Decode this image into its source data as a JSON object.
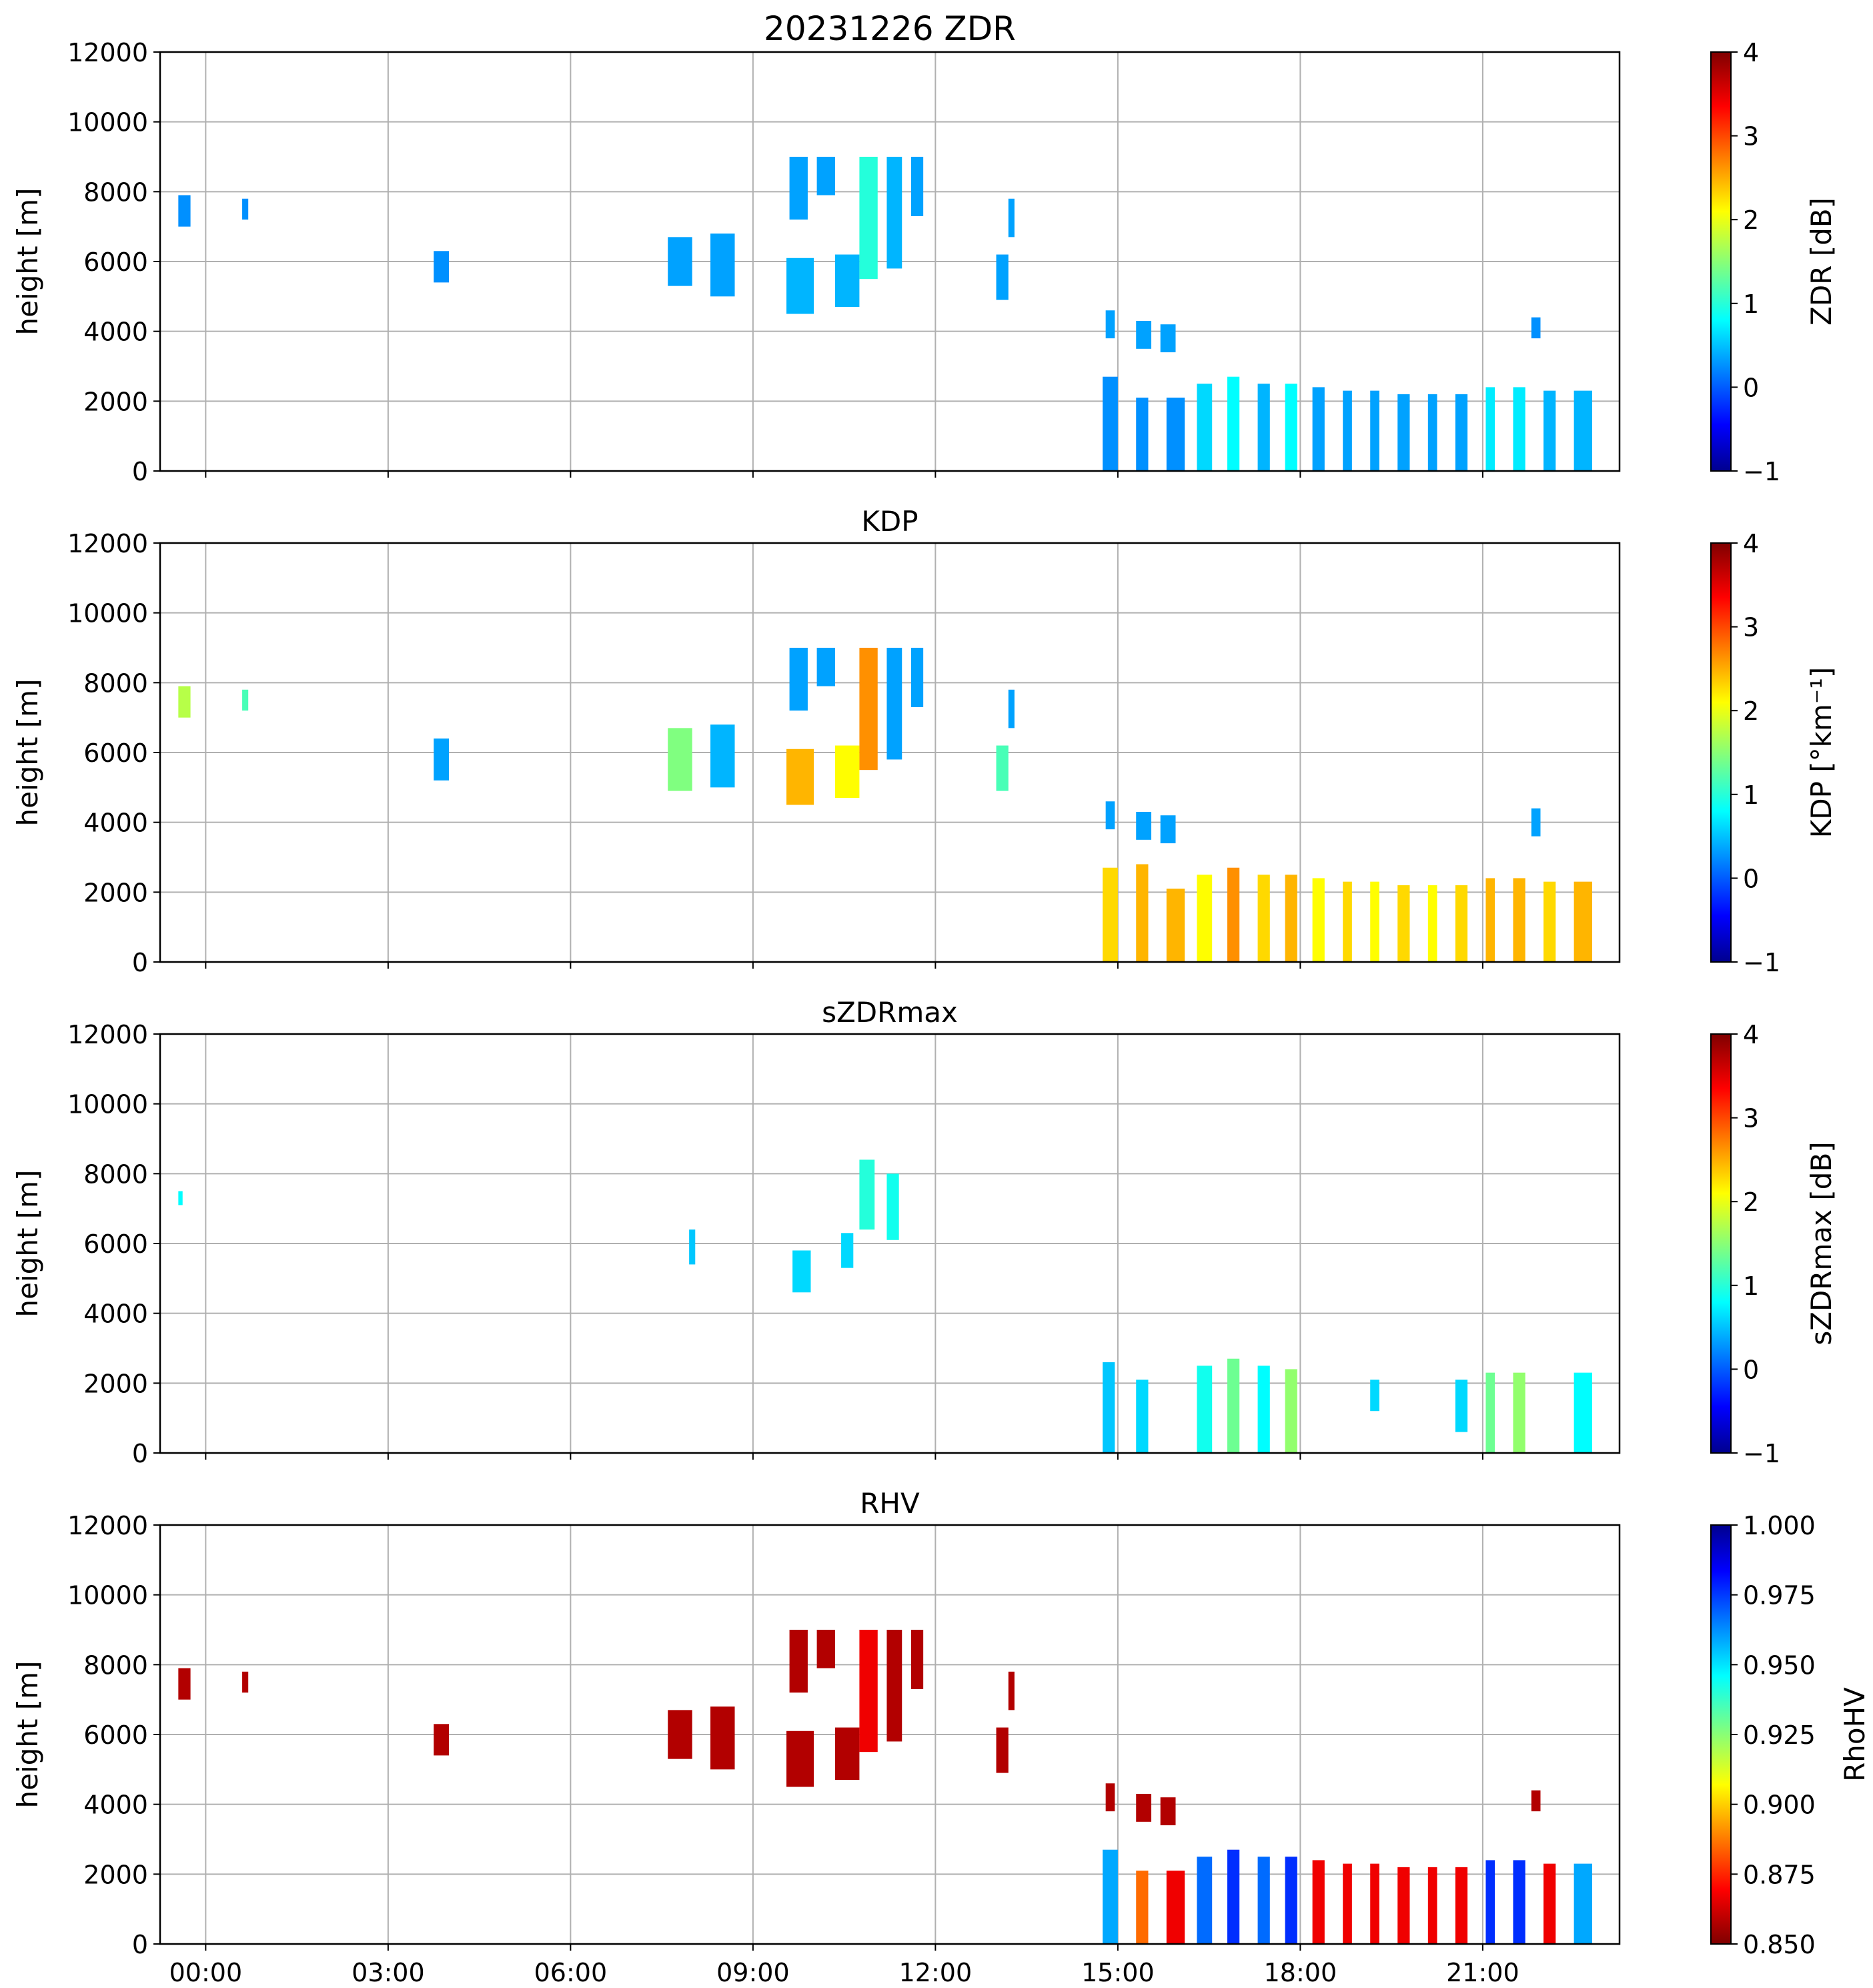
{
  "chart_data": [
    {
      "type": "heatmap",
      "title": "20231226 ZDR",
      "ylabel": "height [m]",
      "ylim": [
        0,
        12000
      ],
      "yticks": [
        "0",
        "2000",
        "4000",
        "6000",
        "8000",
        "10000",
        "12000"
      ],
      "x_range_hours": [
        -0.75,
        23.25
      ],
      "colorbar": {
        "label": "ZDR [dB]",
        "range": [
          -1,
          4
        ],
        "cmap": "jet",
        "ticks": [
          "4",
          "3",
          "2",
          "1",
          "0",
          "−1"
        ],
        "tick_values": [
          4,
          3,
          2,
          1,
          0,
          -1
        ]
      },
      "echo_segments": [
        {
          "t0": -0.45,
          "t1": -0.25,
          "h0": 7000,
          "h1": 7900,
          "value": 0.2
        },
        {
          "t0": 0.6,
          "t1": 0.7,
          "h0": 7200,
          "h1": 7800,
          "value": 0.2
        },
        {
          "t0": 3.75,
          "t1": 4.0,
          "h0": 5400,
          "h1": 6300,
          "value": 0.2
        },
        {
          "t0": 7.6,
          "t1": 8.0,
          "h0": 5300,
          "h1": 6700,
          "value": 0.3
        },
        {
          "t0": 8.3,
          "t1": 8.7,
          "h0": 5000,
          "h1": 6800,
          "value": 0.3
        },
        {
          "t0": 9.55,
          "t1": 10.0,
          "h0": 4500,
          "h1": 6100,
          "value": 0.4
        },
        {
          "t0": 9.6,
          "t1": 9.9,
          "h0": 7200,
          "h1": 9000,
          "value": 0.3
        },
        {
          "t0": 10.05,
          "t1": 10.35,
          "h0": 7900,
          "h1": 9000,
          "value": 0.3
        },
        {
          "t0": 10.35,
          "t1": 10.75,
          "h0": 4700,
          "h1": 6200,
          "value": 0.4
        },
        {
          "t0": 10.75,
          "t1": 11.05,
          "h0": 5500,
          "h1": 9000,
          "value": 1.0
        },
        {
          "t0": 11.2,
          "t1": 11.45,
          "h0": 5800,
          "h1": 9000,
          "value": 0.4
        },
        {
          "t0": 11.6,
          "t1": 11.8,
          "h0": 7300,
          "h1": 9000,
          "value": 0.3
        },
        {
          "t0": 13.0,
          "t1": 13.2,
          "h0": 4900,
          "h1": 6200,
          "value": 0.3
        },
        {
          "t0": 13.2,
          "t1": 13.3,
          "h0": 6700,
          "h1": 7800,
          "value": 0.3
        },
        {
          "t0": 14.8,
          "t1": 14.95,
          "h0": 3800,
          "h1": 4600,
          "value": 0.3
        },
        {
          "t0": 15.3,
          "t1": 15.55,
          "h0": 3500,
          "h1": 4300,
          "value": 0.3
        },
        {
          "t0": 15.7,
          "t1": 15.95,
          "h0": 3400,
          "h1": 4200,
          "value": 0.3
        },
        {
          "t0": 14.75,
          "t1": 15.0,
          "h0": 0,
          "h1": 2700,
          "value": 0.2
        },
        {
          "t0": 15.3,
          "t1": 15.5,
          "h0": 0,
          "h1": 2100,
          "value": 0.2
        },
        {
          "t0": 15.8,
          "t1": 16.1,
          "h0": 0,
          "h1": 2100,
          "value": 0.2
        },
        {
          "t0": 16.3,
          "t1": 16.55,
          "h0": 0,
          "h1": 2500,
          "value": 0.6
        },
        {
          "t0": 16.8,
          "t1": 17.0,
          "h0": 0,
          "h1": 2700,
          "value": 0.8
        },
        {
          "t0": 17.3,
          "t1": 17.5,
          "h0": 0,
          "h1": 2500,
          "value": 0.4
        },
        {
          "t0": 17.75,
          "t1": 17.95,
          "h0": 0,
          "h1": 2500,
          "value": 0.8
        },
        {
          "t0": 18.2,
          "t1": 18.4,
          "h0": 0,
          "h1": 2400,
          "value": 0.3
        },
        {
          "t0": 18.7,
          "t1": 18.85,
          "h0": 0,
          "h1": 2300,
          "value": 0.3
        },
        {
          "t0": 19.15,
          "t1": 19.3,
          "h0": 0,
          "h1": 2300,
          "value": 0.3
        },
        {
          "t0": 19.6,
          "t1": 19.8,
          "h0": 0,
          "h1": 2200,
          "value": 0.3
        },
        {
          "t0": 20.1,
          "t1": 20.25,
          "h0": 0,
          "h1": 2200,
          "value": 0.3
        },
        {
          "t0": 20.55,
          "t1": 20.75,
          "h0": 0,
          "h1": 2200,
          "value": 0.3
        },
        {
          "t0": 21.05,
          "t1": 21.2,
          "h0": 0,
          "h1": 2400,
          "value": 0.7
        },
        {
          "t0": 21.5,
          "t1": 21.7,
          "h0": 0,
          "h1": 2400,
          "value": 0.7
        },
        {
          "t0": 22.0,
          "t1": 22.2,
          "h0": 0,
          "h1": 2300,
          "value": 0.4
        },
        {
          "t0": 22.5,
          "t1": 22.8,
          "h0": 0,
          "h1": 2300,
          "value": 0.4
        },
        {
          "t0": 21.8,
          "t1": 21.95,
          "h0": 3800,
          "h1": 4400,
          "value": 0.2
        }
      ]
    },
    {
      "type": "heatmap",
      "title": "KDP",
      "ylabel": "height [m]",
      "ylim": [
        0,
        12000
      ],
      "yticks": [
        "0",
        "2000",
        "4000",
        "6000",
        "8000",
        "10000",
        "12000"
      ],
      "x_range_hours": [
        -0.75,
        23.25
      ],
      "colorbar": {
        "label": "KDP [°km⁻¹]",
        "range": [
          -1,
          4
        ],
        "cmap": "jet",
        "ticks": [
          "4",
          "3",
          "2",
          "1",
          "0",
          "−1"
        ],
        "tick_values": [
          4,
          3,
          2,
          1,
          0,
          -1
        ]
      },
      "echo_segments": [
        {
          "t0": -0.45,
          "t1": -0.25,
          "h0": 7000,
          "h1": 7900,
          "value": 1.8
        },
        {
          "t0": 0.6,
          "t1": 0.7,
          "h0": 7200,
          "h1": 7800,
          "value": 1.2
        },
        {
          "t0": 3.75,
          "t1": 4.0,
          "h0": 5200,
          "h1": 6400,
          "value": 0.3
        },
        {
          "t0": 7.6,
          "t1": 8.0,
          "h0": 4900,
          "h1": 6700,
          "value": 1.5
        },
        {
          "t0": 8.3,
          "t1": 8.7,
          "h0": 5000,
          "h1": 6800,
          "value": 0.4
        },
        {
          "t0": 9.55,
          "t1": 10.0,
          "h0": 4500,
          "h1": 6100,
          "value": 2.6
        },
        {
          "t0": 9.6,
          "t1": 9.9,
          "h0": 7200,
          "h1": 9000,
          "value": 0.3
        },
        {
          "t0": 10.05,
          "t1": 10.35,
          "h0": 7900,
          "h1": 9000,
          "value": 0.3
        },
        {
          "t0": 10.35,
          "t1": 10.75,
          "h0": 4700,
          "h1": 6200,
          "value": 2.2
        },
        {
          "t0": 10.75,
          "t1": 11.05,
          "h0": 5500,
          "h1": 9000,
          "value": 2.8
        },
        {
          "t0": 11.2,
          "t1": 11.45,
          "h0": 5800,
          "h1": 9000,
          "value": 0.3
        },
        {
          "t0": 11.6,
          "t1": 11.8,
          "h0": 7300,
          "h1": 9000,
          "value": 0.3
        },
        {
          "t0": 13.0,
          "t1": 13.2,
          "h0": 4900,
          "h1": 6200,
          "value": 1.2
        },
        {
          "t0": 13.2,
          "t1": 13.3,
          "h0": 6700,
          "h1": 7800,
          "value": 0.3
        },
        {
          "t0": 14.8,
          "t1": 14.95,
          "h0": 3800,
          "h1": 4600,
          "value": 0.3
        },
        {
          "t0": 15.3,
          "t1": 15.55,
          "h0": 3500,
          "h1": 4300,
          "value": 0.3
        },
        {
          "t0": 15.7,
          "t1": 15.95,
          "h0": 3400,
          "h1": 4200,
          "value": 0.3
        },
        {
          "t0": 14.75,
          "t1": 15.0,
          "h0": 0,
          "h1": 2700,
          "value": 2.4
        },
        {
          "t0": 15.3,
          "t1": 15.5,
          "h0": 0,
          "h1": 2800,
          "value": 2.6
        },
        {
          "t0": 15.8,
          "t1": 16.1,
          "h0": 0,
          "h1": 2100,
          "value": 2.6
        },
        {
          "t0": 16.3,
          "t1": 16.55,
          "h0": 0,
          "h1": 2500,
          "value": 2.2
        },
        {
          "t0": 16.8,
          "t1": 17.0,
          "h0": 0,
          "h1": 2700,
          "value": 2.8
        },
        {
          "t0": 17.3,
          "t1": 17.5,
          "h0": 0,
          "h1": 2500,
          "value": 2.4
        },
        {
          "t0": 17.75,
          "t1": 17.95,
          "h0": 0,
          "h1": 2500,
          "value": 2.6
        },
        {
          "t0": 18.2,
          "t1": 18.4,
          "h0": 0,
          "h1": 2400,
          "value": 2.2
        },
        {
          "t0": 18.7,
          "t1": 18.85,
          "h0": 0,
          "h1": 2300,
          "value": 2.4
        },
        {
          "t0": 19.15,
          "t1": 19.3,
          "h0": 0,
          "h1": 2300,
          "value": 2.2
        },
        {
          "t0": 19.6,
          "t1": 19.8,
          "h0": 0,
          "h1": 2200,
          "value": 2.4
        },
        {
          "t0": 20.1,
          "t1": 20.25,
          "h0": 0,
          "h1": 2200,
          "value": 2.2
        },
        {
          "t0": 20.55,
          "t1": 20.75,
          "h0": 0,
          "h1": 2200,
          "value": 2.4
        },
        {
          "t0": 21.05,
          "t1": 21.2,
          "h0": 0,
          "h1": 2400,
          "value": 2.6
        },
        {
          "t0": 21.5,
          "t1": 21.7,
          "h0": 0,
          "h1": 2400,
          "value": 2.6
        },
        {
          "t0": 22.0,
          "t1": 22.2,
          "h0": 0,
          "h1": 2300,
          "value": 2.4
        },
        {
          "t0": 22.5,
          "t1": 22.8,
          "h0": 0,
          "h1": 2300,
          "value": 2.6
        },
        {
          "t0": 21.8,
          "t1": 21.95,
          "h0": 3600,
          "h1": 4400,
          "value": 0.3
        }
      ]
    },
    {
      "type": "heatmap",
      "title": "sZDRmax",
      "ylabel": "height [m]",
      "ylim": [
        0,
        12000
      ],
      "yticks": [
        "0",
        "2000",
        "4000",
        "6000",
        "8000",
        "10000",
        "12000"
      ],
      "x_range_hours": [
        -0.75,
        23.25
      ],
      "colorbar": {
        "label": "sZDRmax [dB]",
        "range": [
          -1,
          4
        ],
        "cmap": "jet",
        "ticks": [
          "4",
          "3",
          "2",
          "1",
          "0",
          "−1"
        ],
        "tick_values": [
          4,
          3,
          2,
          1,
          0,
          -1
        ]
      },
      "echo_segments": [
        {
          "t0": -0.45,
          "t1": -0.38,
          "h0": 7100,
          "h1": 7500,
          "value": 0.8
        },
        {
          "t0": 7.95,
          "t1": 8.05,
          "h0": 5400,
          "h1": 6400,
          "value": 0.5
        },
        {
          "t0": 9.65,
          "t1": 9.95,
          "h0": 4600,
          "h1": 5800,
          "value": 0.6
        },
        {
          "t0": 10.45,
          "t1": 10.65,
          "h0": 5300,
          "h1": 6300,
          "value": 0.6
        },
        {
          "t0": 10.75,
          "t1": 11.0,
          "h0": 6400,
          "h1": 8400,
          "value": 1.0
        },
        {
          "t0": 11.2,
          "t1": 11.4,
          "h0": 6100,
          "h1": 8000,
          "value": 0.9
        },
        {
          "t0": 14.75,
          "t1": 14.95,
          "h0": 0,
          "h1": 2600,
          "value": 0.5
        },
        {
          "t0": 15.3,
          "t1": 15.5,
          "h0": 0,
          "h1": 2100,
          "value": 0.6
        },
        {
          "t0": 16.3,
          "t1": 16.55,
          "h0": 0,
          "h1": 2500,
          "value": 0.9
        },
        {
          "t0": 16.8,
          "t1": 17.0,
          "h0": 0,
          "h1": 2700,
          "value": 1.4
        },
        {
          "t0": 17.3,
          "t1": 17.5,
          "h0": 0,
          "h1": 2500,
          "value": 0.8
        },
        {
          "t0": 17.75,
          "t1": 17.95,
          "h0": 0,
          "h1": 2400,
          "value": 1.6
        },
        {
          "t0": 19.15,
          "t1": 19.3,
          "h0": 1200,
          "h1": 2100,
          "value": 0.6
        },
        {
          "t0": 20.55,
          "t1": 20.75,
          "h0": 600,
          "h1": 2100,
          "value": 0.6
        },
        {
          "t0": 21.05,
          "t1": 21.2,
          "h0": 0,
          "h1": 2300,
          "value": 1.4
        },
        {
          "t0": 21.5,
          "t1": 21.7,
          "h0": 0,
          "h1": 2300,
          "value": 1.6
        },
        {
          "t0": 22.5,
          "t1": 22.8,
          "h0": 0,
          "h1": 2300,
          "value": 0.8
        }
      ]
    },
    {
      "type": "heatmap",
      "title": "RHV",
      "ylabel": "height [m]",
      "ylim": [
        0,
        12000
      ],
      "yticks": [
        "0",
        "2000",
        "4000",
        "6000",
        "8000",
        "10000",
        "12000"
      ],
      "x_range_hours": [
        -0.75,
        23.25
      ],
      "xticks": [
        "00:00",
        "03:00",
        "06:00",
        "09:00",
        "12:00",
        "15:00",
        "18:00",
        "21:00"
      ],
      "xtick_hours": [
        0,
        3,
        6,
        9,
        12,
        15,
        18,
        21
      ],
      "colorbar": {
        "label": "RhoHV",
        "range": [
          0.85,
          1.0
        ],
        "cmap": "jet_r",
        "ticks": [
          "1.000",
          "0.975",
          "0.950",
          "0.925",
          "0.900",
          "0.875",
          "0.850"
        ],
        "tick_values": [
          1.0,
          0.975,
          0.95,
          0.925,
          0.9,
          0.875,
          0.85
        ]
      },
      "echo_segments": [
        {
          "t0": -0.45,
          "t1": -0.25,
          "h0": 7000,
          "h1": 7900,
          "value": 0.85
        },
        {
          "t0": 0.6,
          "t1": 0.7,
          "h0": 7200,
          "h1": 7800,
          "value": 0.85
        },
        {
          "t0": 3.75,
          "t1": 4.0,
          "h0": 5400,
          "h1": 6300,
          "value": 0.85
        },
        {
          "t0": 7.6,
          "t1": 8.0,
          "h0": 5300,
          "h1": 6700,
          "value": 0.85
        },
        {
          "t0": 8.3,
          "t1": 8.7,
          "h0": 5000,
          "h1": 6800,
          "value": 0.85
        },
        {
          "t0": 9.55,
          "t1": 10.0,
          "h0": 4500,
          "h1": 6100,
          "value": 0.85
        },
        {
          "t0": 9.6,
          "t1": 9.9,
          "h0": 7200,
          "h1": 9000,
          "value": 0.85
        },
        {
          "t0": 10.05,
          "t1": 10.35,
          "h0": 7900,
          "h1": 9000,
          "value": 0.85
        },
        {
          "t0": 10.35,
          "t1": 10.75,
          "h0": 4700,
          "h1": 6200,
          "value": 0.85
        },
        {
          "t0": 10.75,
          "t1": 11.05,
          "h0": 5500,
          "h1": 9000,
          "value": 0.86
        },
        {
          "t0": 11.2,
          "t1": 11.45,
          "h0": 5800,
          "h1": 9000,
          "value": 0.85
        },
        {
          "t0": 11.6,
          "t1": 11.8,
          "h0": 7300,
          "h1": 9000,
          "value": 0.85
        },
        {
          "t0": 13.0,
          "t1": 13.2,
          "h0": 4900,
          "h1": 6200,
          "value": 0.85
        },
        {
          "t0": 13.2,
          "t1": 13.3,
          "h0": 6700,
          "h1": 7800,
          "value": 0.85
        },
        {
          "t0": 14.8,
          "t1": 14.95,
          "h0": 3800,
          "h1": 4600,
          "value": 0.85
        },
        {
          "t0": 15.3,
          "t1": 15.55,
          "h0": 3500,
          "h1": 4300,
          "value": 0.85
        },
        {
          "t0": 15.7,
          "t1": 15.95,
          "h0": 3400,
          "h1": 4200,
          "value": 0.85
        },
        {
          "t0": 14.75,
          "t1": 15.0,
          "h0": 0,
          "h1": 2700,
          "value": 0.96
        },
        {
          "t0": 15.3,
          "t1": 15.5,
          "h0": 0,
          "h1": 2100,
          "value": 0.88
        },
        {
          "t0": 15.8,
          "t1": 16.1,
          "h0": 0,
          "h1": 2100,
          "value": 0.86
        },
        {
          "t0": 16.3,
          "t1": 16.55,
          "h0": 0,
          "h1": 2500,
          "value": 0.97
        },
        {
          "t0": 16.8,
          "t1": 17.0,
          "h0": 0,
          "h1": 2700,
          "value": 0.98
        },
        {
          "t0": 17.3,
          "t1": 17.5,
          "h0": 0,
          "h1": 2500,
          "value": 0.97
        },
        {
          "t0": 17.75,
          "t1": 17.95,
          "h0": 0,
          "h1": 2500,
          "value": 0.98
        },
        {
          "t0": 18.2,
          "t1": 18.4,
          "h0": 0,
          "h1": 2400,
          "value": 0.86
        },
        {
          "t0": 18.7,
          "t1": 18.85,
          "h0": 0,
          "h1": 2300,
          "value": 0.86
        },
        {
          "t0": 19.15,
          "t1": 19.3,
          "h0": 0,
          "h1": 2300,
          "value": 0.86
        },
        {
          "t0": 19.6,
          "t1": 19.8,
          "h0": 0,
          "h1": 2200,
          "value": 0.86
        },
        {
          "t0": 20.1,
          "t1": 20.25,
          "h0": 0,
          "h1": 2200,
          "value": 0.86
        },
        {
          "t0": 20.55,
          "t1": 20.75,
          "h0": 0,
          "h1": 2200,
          "value": 0.86
        },
        {
          "t0": 21.05,
          "t1": 21.2,
          "h0": 0,
          "h1": 2400,
          "value": 0.98
        },
        {
          "t0": 21.5,
          "t1": 21.7,
          "h0": 0,
          "h1": 2400,
          "value": 0.98
        },
        {
          "t0": 22.0,
          "t1": 22.2,
          "h0": 0,
          "h1": 2300,
          "value": 0.86
        },
        {
          "t0": 22.5,
          "t1": 22.8,
          "h0": 0,
          "h1": 2300,
          "value": 0.96
        },
        {
          "t0": 21.8,
          "t1": 21.95,
          "h0": 3800,
          "h1": 4400,
          "value": 0.85
        }
      ]
    }
  ]
}
